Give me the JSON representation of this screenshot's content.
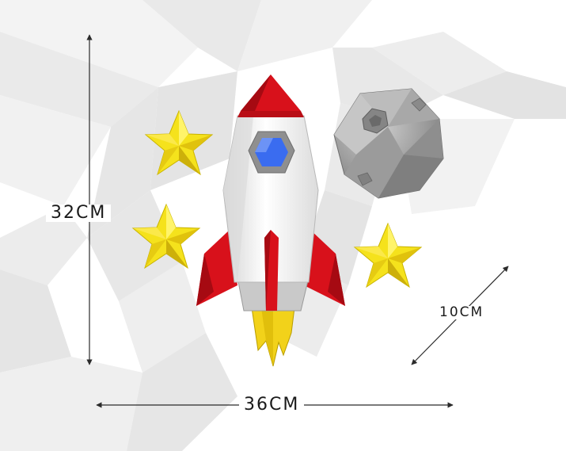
{
  "dimensions": {
    "height": "32CM",
    "width": "36CM",
    "depth": "10CM"
  },
  "colors": {
    "background_polygons": "#ececec",
    "rocket_body": "#f4f4f4",
    "rocket_red": "#d8111b",
    "window_blue": "#3a6cf0",
    "window_frame": "#8f8f8f",
    "flame": "#f2d21a",
    "star": "#f5e21c",
    "moon": "#9a9a9a",
    "arrow": "#2b2b2b"
  },
  "icons": [
    "rocket-icon",
    "star-icon",
    "moon-icon",
    "arrow-icon"
  ]
}
